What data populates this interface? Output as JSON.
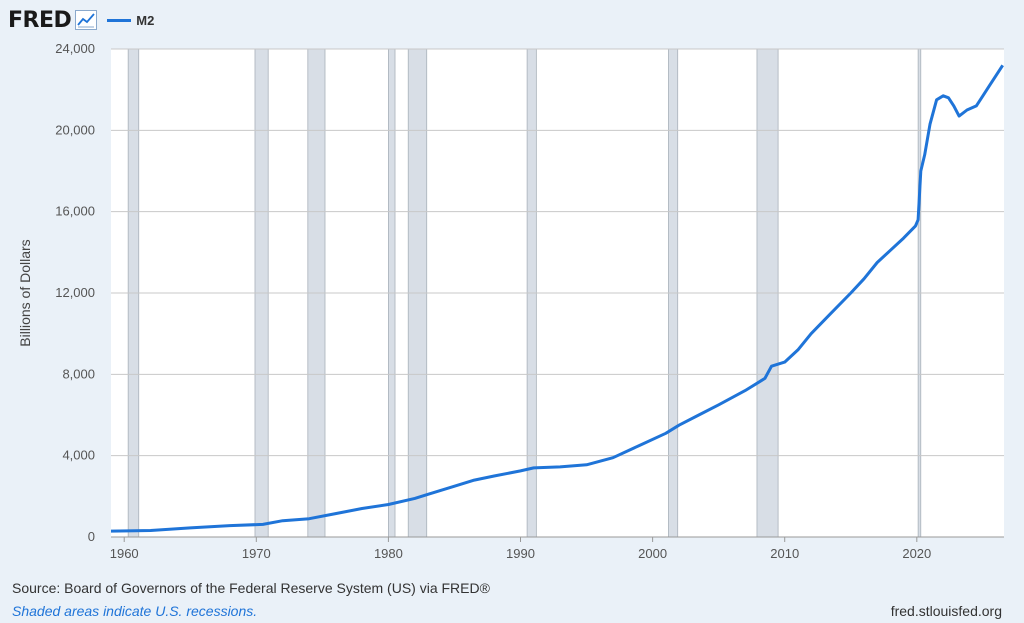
{
  "header": {
    "logo": "FRED",
    "logo_icon": "line-chart-icon",
    "series_label": "M2"
  },
  "colors": {
    "series": "#1f74d8",
    "recession": "#d8dee6",
    "grid": "#c8c8c8",
    "plot_bg": "#ffffff"
  },
  "chart_data": {
    "type": "line",
    "title": "",
    "xlabel": "",
    "ylabel": "Billions of Dollars",
    "xlim": [
      1959.0,
      2026.6
    ],
    "ylim": [
      0,
      24000
    ],
    "y_ticks": [
      0,
      4000,
      8000,
      12000,
      16000,
      20000,
      24000
    ],
    "y_tick_labels": [
      "0",
      "4,000",
      "8,000",
      "12,000",
      "16,000",
      "20,000",
      "24,000"
    ],
    "x_ticks": [
      1960,
      1970,
      1980,
      1990,
      2000,
      2010,
      2020
    ],
    "x_tick_labels": [
      "1960",
      "1970",
      "1980",
      "1990",
      "2000",
      "2010",
      "2020"
    ],
    "grid": true,
    "recessions": [
      [
        1960.3,
        1961.1
      ],
      [
        1969.9,
        1970.9
      ],
      [
        1973.9,
        1975.2
      ],
      [
        1980.0,
        1980.5
      ],
      [
        1981.5,
        1982.9
      ],
      [
        1990.5,
        1991.2
      ],
      [
        2001.2,
        2001.9
      ],
      [
        2007.9,
        2009.5
      ],
      [
        2020.1,
        2020.3
      ]
    ],
    "series": [
      {
        "name": "M2",
        "x": [
          1959.0,
          1962,
          1965,
          1968,
          1970.5,
          1972,
          1974,
          1976,
          1978,
          1980,
          1982,
          1983,
          1985,
          1986.5,
          1988,
          1990,
          1991,
          1993,
          1995,
          1997,
          1999,
          2001,
          2002,
          2003.5,
          2005,
          2007,
          2008.5,
          2009,
          2010,
          2011,
          2012,
          2013.5,
          2015,
          2016,
          2017,
          2018,
          2019,
          2019.9,
          2020.1,
          2020.3,
          2020.6,
          2021,
          2021.5,
          2022,
          2022.4,
          2022.8,
          2023.2,
          2023.8,
          2024.5,
          2025,
          2025.5,
          2026,
          2026.5
        ],
        "values": [
          290,
          320,
          450,
          560,
          620,
          800,
          900,
          1150,
          1400,
          1600,
          1900,
          2100,
          2500,
          2800,
          3000,
          3250,
          3400,
          3450,
          3550,
          3900,
          4500,
          5100,
          5500,
          6000,
          6500,
          7200,
          7800,
          8400,
          8600,
          9200,
          10000,
          11000,
          12000,
          12700,
          13500,
          14100,
          14700,
          15300,
          15600,
          18000,
          18800,
          20300,
          21500,
          21700,
          21600,
          21200,
          20700,
          21000,
          21200,
          21700,
          22200,
          22700,
          23200
        ]
      }
    ]
  },
  "footer": {
    "source": "Source: Board of Governors of the Federal Reserve System (US) via FRED®",
    "shaded": "Shaded areas indicate U.S. recessions.",
    "url": "fred.stlouisfed.org"
  }
}
